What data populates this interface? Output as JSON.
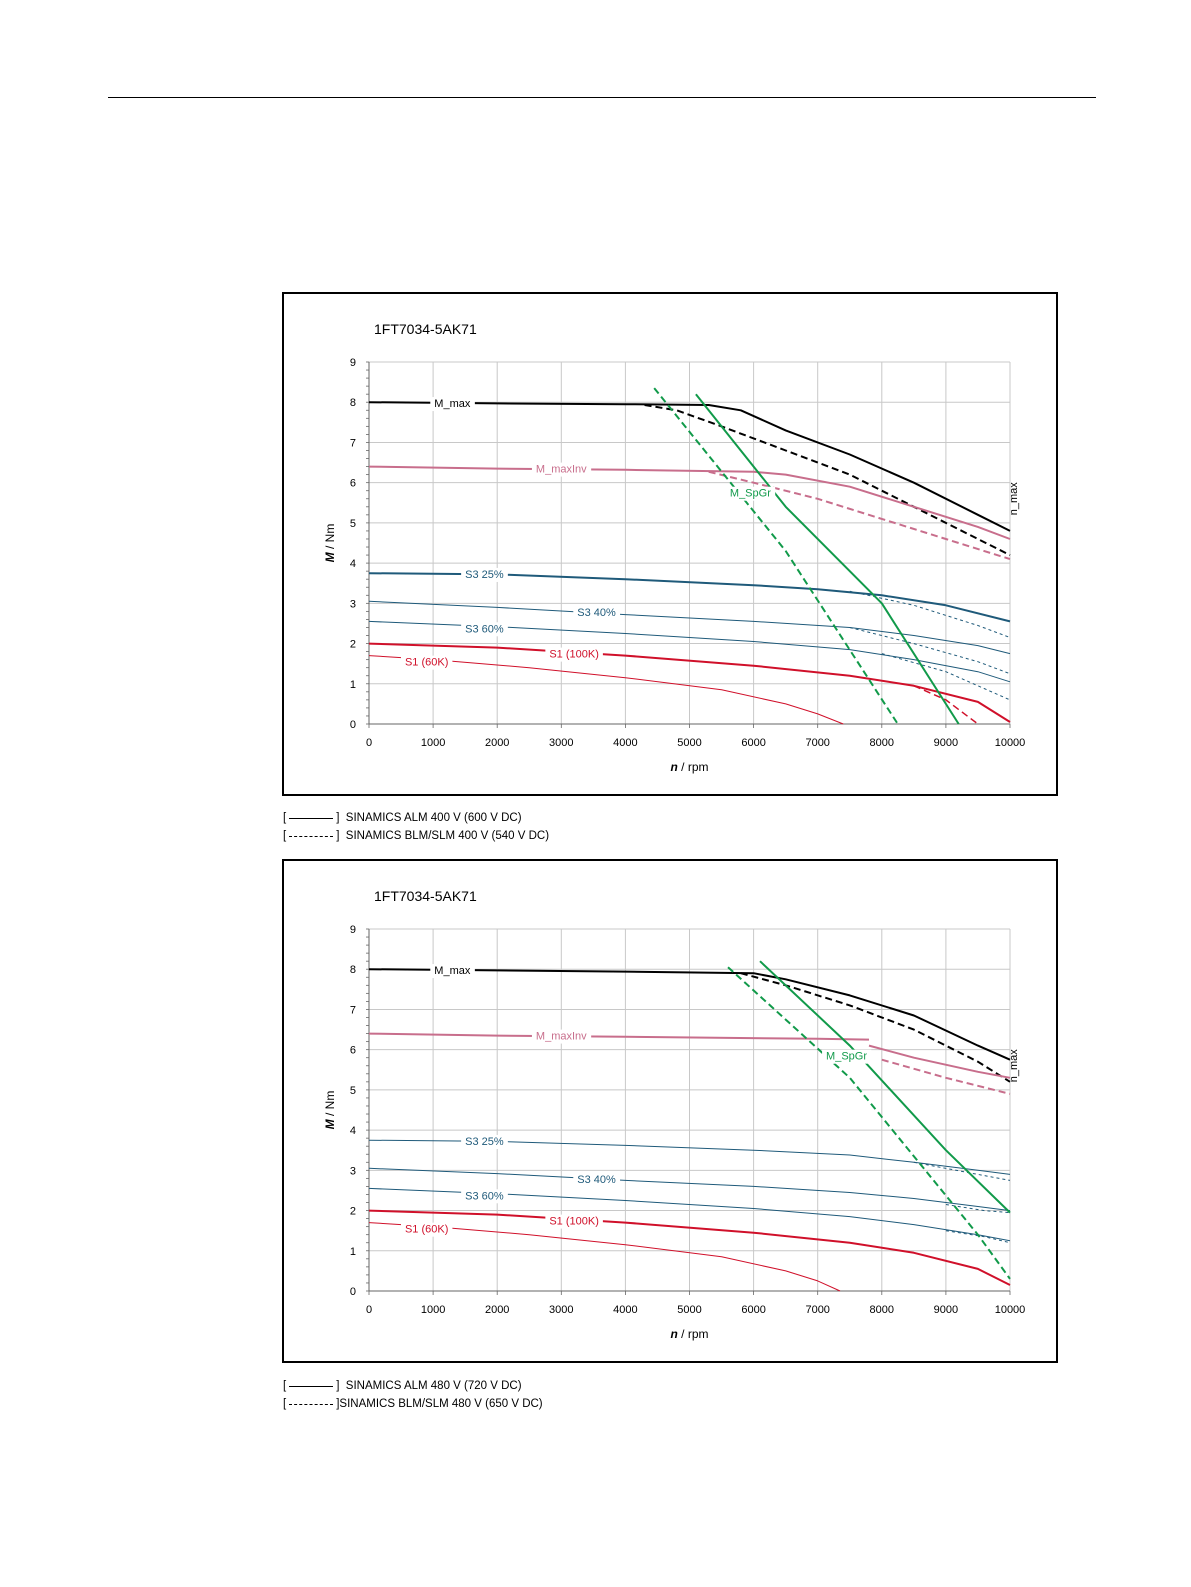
{
  "legends": [
    {
      "solid_label": "SINAMICS ALM 400 V (600 V DC)",
      "dashed_label": "SINAMICS BLM/SLM 400 V (540 V DC)"
    },
    {
      "solid_label": "SINAMICS ALM 480 V (720 V DC)",
      "dashed_label": "SINAMICS BLM/SLM 480 V (650 V DC)"
    }
  ],
  "chart_data": [
    {
      "type": "line",
      "title": "1FT7034-5AK71",
      "xlabel_var": "n",
      "xlabel_unit": " / rpm",
      "ylabel_var": "M",
      "ylabel_unit": " / Nm",
      "xlim": [
        0,
        10000
      ],
      "ylim": [
        0,
        9
      ],
      "xticks": [
        0,
        1000,
        2000,
        3000,
        4000,
        5000,
        6000,
        7000,
        8000,
        9000,
        10000
      ],
      "yticks": [
        0,
        1,
        2,
        3,
        4,
        5,
        6,
        7,
        8,
        9
      ],
      "grid": true,
      "vertical_label": "n_max",
      "colors": {
        "black": "#000000",
        "pink": "#c86e8c",
        "blue": "#1f5a7a",
        "red": "#d0102a",
        "green": "#119a4a"
      },
      "series": [
        {
          "name": "M_max",
          "color": "black",
          "width": 2,
          "dash": false,
          "label_at": [
            1300,
            7.98
          ],
          "points": [
            [
              0,
              8.0
            ],
            [
              2000,
              7.97
            ],
            [
              4000,
              7.95
            ],
            [
              5300,
              7.93
            ],
            [
              5800,
              7.8
            ],
            [
              6500,
              7.3
            ],
            [
              7500,
              6.7
            ],
            [
              8500,
              6.0
            ],
            [
              9500,
              5.2
            ],
            [
              10000,
              4.8
            ]
          ]
        },
        {
          "name": "M_max dashed",
          "color": "black",
          "width": 2,
          "dash": true,
          "points": [
            [
              4300,
              7.93
            ],
            [
              4800,
              7.8
            ],
            [
              5500,
              7.4
            ],
            [
              6500,
              6.8
            ],
            [
              7500,
              6.2
            ],
            [
              8500,
              5.4
            ],
            [
              9500,
              4.6
            ],
            [
              10000,
              4.2
            ]
          ]
        },
        {
          "name": "M_maxInv",
          "color": "pink",
          "width": 2,
          "dash": false,
          "label_at": [
            3000,
            6.35
          ],
          "points": [
            [
              0,
              6.4
            ],
            [
              2000,
              6.35
            ],
            [
              4000,
              6.32
            ],
            [
              6000,
              6.27
            ],
            [
              6500,
              6.2
            ],
            [
              7500,
              5.9
            ],
            [
              8500,
              5.4
            ],
            [
              9500,
              4.9
            ],
            [
              10000,
              4.6
            ]
          ]
        },
        {
          "name": "M_maxInv dashed",
          "color": "pink",
          "width": 2,
          "dash": true,
          "points": [
            [
              5300,
              6.27
            ],
            [
              6000,
              6.0
            ],
            [
              7000,
              5.6
            ],
            [
              8000,
              5.1
            ],
            [
              9000,
              4.6
            ],
            [
              10000,
              4.1
            ]
          ]
        },
        {
          "name": "S3 25%",
          "color": "blue",
          "width": 2,
          "dash": false,
          "label_at": [
            1800,
            3.73
          ],
          "points": [
            [
              0,
              3.75
            ],
            [
              2000,
              3.72
            ],
            [
              4000,
              3.6
            ],
            [
              6000,
              3.45
            ],
            [
              7000,
              3.35
            ],
            [
              8000,
              3.2
            ],
            [
              9000,
              2.95
            ],
            [
              10000,
              2.55
            ]
          ]
        },
        {
          "name": "S3 25% dashed",
          "color": "blue",
          "width": 1,
          "dash": true,
          "points": [
            [
              7500,
              3.3
            ],
            [
              8500,
              2.95
            ],
            [
              9500,
              2.45
            ],
            [
              10000,
              2.15
            ]
          ]
        },
        {
          "name": "S3 40%",
          "color": "blue",
          "width": 1,
          "dash": false,
          "label_at": [
            3550,
            2.78
          ],
          "points": [
            [
              0,
              3.05
            ],
            [
              2000,
              2.9
            ],
            [
              4000,
              2.72
            ],
            [
              6000,
              2.55
            ],
            [
              7500,
              2.4
            ],
            [
              8500,
              2.2
            ],
            [
              9500,
              1.95
            ],
            [
              10000,
              1.75
            ]
          ]
        },
        {
          "name": "S3 40% dashed",
          "color": "blue",
          "width": 1,
          "dash": true,
          "points": [
            [
              7500,
              2.4
            ],
            [
              8500,
              2.0
            ],
            [
              9500,
              1.55
            ],
            [
              10000,
              1.25
            ]
          ]
        },
        {
          "name": "S3 60%",
          "color": "blue",
          "width": 1,
          "dash": false,
          "label_at": [
            1800,
            2.38
          ],
          "points": [
            [
              0,
              2.55
            ],
            [
              2000,
              2.42
            ],
            [
              4000,
              2.25
            ],
            [
              6000,
              2.05
            ],
            [
              7500,
              1.85
            ],
            [
              8500,
              1.6
            ],
            [
              9500,
              1.3
            ],
            [
              10000,
              1.05
            ]
          ]
        },
        {
          "name": "S3 60% dashed",
          "color": "blue",
          "width": 1,
          "dash": true,
          "points": [
            [
              8000,
              1.75
            ],
            [
              9000,
              1.3
            ],
            [
              9500,
              0.95
            ],
            [
              10000,
              0.6
            ]
          ]
        },
        {
          "name": "S1 (100K)",
          "color": "red",
          "width": 2,
          "dash": false,
          "label_at": [
            3200,
            1.75
          ],
          "points": [
            [
              0,
              2.0
            ],
            [
              2000,
              1.9
            ],
            [
              4000,
              1.7
            ],
            [
              6000,
              1.45
            ],
            [
              7500,
              1.2
            ],
            [
              8500,
              0.95
            ],
            [
              9500,
              0.55
            ],
            [
              10000,
              0.05
            ]
          ]
        },
        {
          "name": "S1 (100K) dashed",
          "color": "red",
          "width": 1.5,
          "dash": true,
          "points": [
            [
              8500,
              0.95
            ],
            [
              9000,
              0.6
            ],
            [
              9500,
              0.0
            ]
          ]
        },
        {
          "name": "S1 (60K)",
          "color": "red",
          "width": 1,
          "dash": false,
          "label_at": [
            900,
            1.55
          ],
          "points": [
            [
              0,
              1.7
            ],
            [
              1000,
              1.6
            ],
            [
              2500,
              1.4
            ],
            [
              4000,
              1.15
            ],
            [
              5500,
              0.85
            ],
            [
              6500,
              0.5
            ],
            [
              7000,
              0.25
            ],
            [
              7400,
              0.0
            ]
          ]
        },
        {
          "name": "M_SpGr",
          "color": "green",
          "width": 2,
          "dash": false,
          "label_at": [
            5950,
            5.75
          ],
          "points": [
            [
              5100,
              8.2
            ],
            [
              6500,
              5.4
            ],
            [
              8000,
              3.0
            ],
            [
              9200,
              0.0
            ]
          ]
        },
        {
          "name": "M_SpGr dashed",
          "color": "green",
          "width": 2,
          "dash": true,
          "points": [
            [
              4450,
              8.35
            ],
            [
              6500,
              4.3
            ],
            [
              8250,
              0.0
            ]
          ]
        }
      ]
    },
    {
      "type": "line",
      "title": "1FT7034-5AK71",
      "xlabel_var": "n",
      "xlabel_unit": " / rpm",
      "ylabel_var": "M",
      "ylabel_unit": " / Nm",
      "xlim": [
        0,
        10000
      ],
      "ylim": [
        0,
        9
      ],
      "xticks": [
        0,
        1000,
        2000,
        3000,
        4000,
        5000,
        6000,
        7000,
        8000,
        9000,
        10000
      ],
      "yticks": [
        0,
        1,
        2,
        3,
        4,
        5,
        6,
        7,
        8,
        9
      ],
      "grid": true,
      "vertical_label": "n_max",
      "colors": {
        "black": "#000000",
        "pink": "#c86e8c",
        "blue": "#1f5a7a",
        "red": "#d0102a",
        "green": "#119a4a"
      },
      "series": [
        {
          "name": "M_max",
          "color": "black",
          "width": 2,
          "dash": false,
          "label_at": [
            1300,
            7.98
          ],
          "points": [
            [
              0,
              8.0
            ],
            [
              2000,
              7.97
            ],
            [
              4000,
              7.94
            ],
            [
              6000,
              7.9
            ],
            [
              6500,
              7.75
            ],
            [
              7500,
              7.35
            ],
            [
              8500,
              6.85
            ],
            [
              9500,
              6.1
            ],
            [
              10000,
              5.75
            ]
          ]
        },
        {
          "name": "M_max dashed",
          "color": "black",
          "width": 2,
          "dash": true,
          "points": [
            [
              5800,
              7.9
            ],
            [
              6500,
              7.6
            ],
            [
              7500,
              7.1
            ],
            [
              8500,
              6.5
            ],
            [
              9500,
              5.7
            ],
            [
              10000,
              5.2
            ]
          ]
        },
        {
          "name": "M_maxInv",
          "color": "pink",
          "width": 2,
          "dash": false,
          "label_at": [
            3000,
            6.35
          ],
          "points": [
            [
              0,
              6.4
            ],
            [
              2000,
              6.35
            ],
            [
              4000,
              6.32
            ],
            [
              7000,
              6.27
            ],
            [
              7800,
              6.25
            ]
          ]
        },
        {
          "name": "M_maxInv right",
          "color": "pink",
          "width": 2,
          "dash": false,
          "points": [
            [
              7800,
              6.1
            ],
            [
              8500,
              5.8
            ],
            [
              9500,
              5.45
            ],
            [
              10000,
              5.3
            ]
          ]
        },
        {
          "name": "M_maxInv dashed",
          "color": "pink",
          "width": 2,
          "dash": true,
          "points": [
            [
              8000,
              5.75
            ],
            [
              9000,
              5.3
            ],
            [
              10000,
              4.9
            ]
          ]
        },
        {
          "name": "S3 25%",
          "color": "blue",
          "width": 1,
          "dash": false,
          "label_at": [
            1800,
            3.73
          ],
          "points": [
            [
              0,
              3.75
            ],
            [
              2000,
              3.72
            ],
            [
              4000,
              3.62
            ],
            [
              6000,
              3.5
            ],
            [
              7500,
              3.38
            ],
            [
              8500,
              3.2
            ],
            [
              9500,
              3.0
            ],
            [
              10000,
              2.9
            ]
          ]
        },
        {
          "name": "S3 25% dashed",
          "color": "blue",
          "width": 1,
          "dash": true,
          "points": [
            [
              8500,
              3.2
            ],
            [
              9500,
              2.9
            ],
            [
              10000,
              2.75
            ]
          ]
        },
        {
          "name": "S3 40%",
          "color": "blue",
          "width": 1,
          "dash": false,
          "label_at": [
            3550,
            2.78
          ],
          "points": [
            [
              0,
              3.05
            ],
            [
              2000,
              2.92
            ],
            [
              4000,
              2.75
            ],
            [
              6000,
              2.6
            ],
            [
              7500,
              2.45
            ],
            [
              8500,
              2.3
            ],
            [
              9500,
              2.1
            ],
            [
              10000,
              2.0
            ]
          ]
        },
        {
          "name": "S3 40% dashed",
          "color": "blue",
          "width": 1,
          "dash": true,
          "points": [
            [
              9000,
              2.15
            ],
            [
              9600,
              2.0
            ],
            [
              10000,
              1.95
            ]
          ]
        },
        {
          "name": "S3 60%",
          "color": "blue",
          "width": 1,
          "dash": false,
          "label_at": [
            1800,
            2.38
          ],
          "points": [
            [
              0,
              2.55
            ],
            [
              2000,
              2.42
            ],
            [
              4000,
              2.25
            ],
            [
              6000,
              2.05
            ],
            [
              7500,
              1.85
            ],
            [
              8500,
              1.65
            ],
            [
              9500,
              1.4
            ],
            [
              10000,
              1.25
            ]
          ]
        },
        {
          "name": "S3 60% dashed",
          "color": "blue",
          "width": 1,
          "dash": true,
          "points": [
            [
              9000,
              1.5
            ],
            [
              9600,
              1.35
            ],
            [
              10000,
              1.2
            ]
          ]
        },
        {
          "name": "S1 (100K)",
          "color": "red",
          "width": 2,
          "dash": false,
          "label_at": [
            3200,
            1.75
          ],
          "points": [
            [
              0,
              2.0
            ],
            [
              2000,
              1.9
            ],
            [
              4000,
              1.7
            ],
            [
              6000,
              1.45
            ],
            [
              7500,
              1.2
            ],
            [
              8500,
              0.95
            ],
            [
              9500,
              0.55
            ],
            [
              10000,
              0.15
            ]
          ]
        },
        {
          "name": "S1 (60K)",
          "color": "red",
          "width": 1,
          "dash": false,
          "label_at": [
            900,
            1.55
          ],
          "points": [
            [
              0,
              1.7
            ],
            [
              1000,
              1.6
            ],
            [
              2500,
              1.4
            ],
            [
              4000,
              1.15
            ],
            [
              5500,
              0.85
            ],
            [
              6500,
              0.5
            ],
            [
              7000,
              0.25
            ],
            [
              7350,
              0.0
            ]
          ]
        },
        {
          "name": "M_SpGr",
          "color": "green",
          "width": 2,
          "dash": false,
          "label_at": [
            7450,
            5.85
          ],
          "points": [
            [
              6100,
              8.2
            ],
            [
              7500,
              6.1
            ],
            [
              9000,
              3.5
            ],
            [
              10000,
              1.95
            ]
          ]
        },
        {
          "name": "M_SpGr dashed",
          "color": "green",
          "width": 2,
          "dash": true,
          "points": [
            [
              5600,
              8.05
            ],
            [
              7500,
              5.3
            ],
            [
              9500,
              1.4
            ],
            [
              10000,
              0.3
            ]
          ]
        }
      ]
    }
  ]
}
